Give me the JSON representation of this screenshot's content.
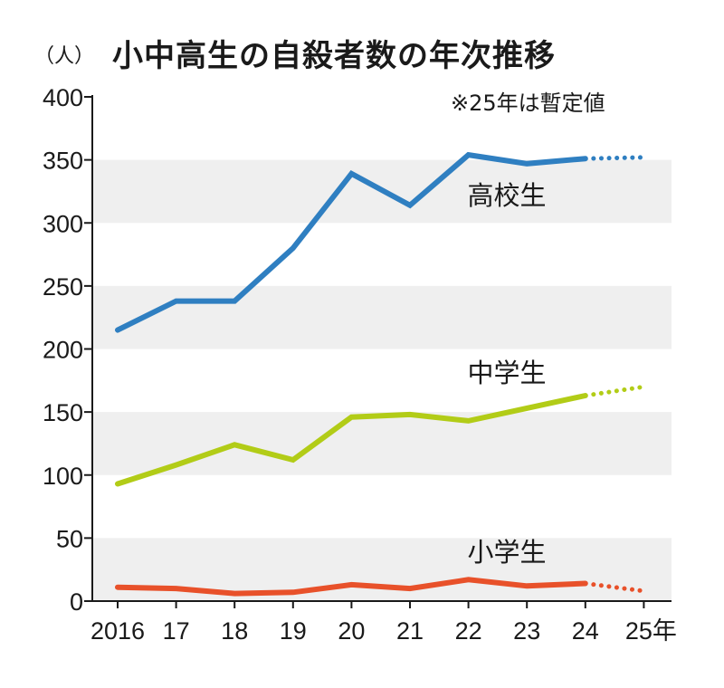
{
  "chart_data": {
    "type": "line",
    "title": "小中高生の自殺者数の年次推移",
    "ylabel": "（人）",
    "note": "※25年は暫定値",
    "ylim": [
      0,
      400
    ],
    "yticks": [
      0,
      50,
      100,
      150,
      200,
      250,
      300,
      350,
      400
    ],
    "categories": [
      "2016",
      "17",
      "18",
      "19",
      "20",
      "21",
      "22",
      "23",
      "24",
      "25年"
    ],
    "provisional_category": "25年",
    "series": [
      {
        "name": "高校生",
        "color": "#2f7fc1",
        "values": [
          215,
          238,
          238,
          280,
          339,
          314,
          354,
          347,
          351,
          352
        ]
      },
      {
        "name": "中学生",
        "color": "#b2cc17",
        "values": [
          93,
          108,
          124,
          112,
          146,
          148,
          143,
          153,
          163,
          170
        ]
      },
      {
        "name": "小学生",
        "color": "#e8512a",
        "values": [
          11,
          10,
          6,
          7,
          13,
          10,
          17,
          12,
          14,
          8
        ]
      }
    ]
  }
}
